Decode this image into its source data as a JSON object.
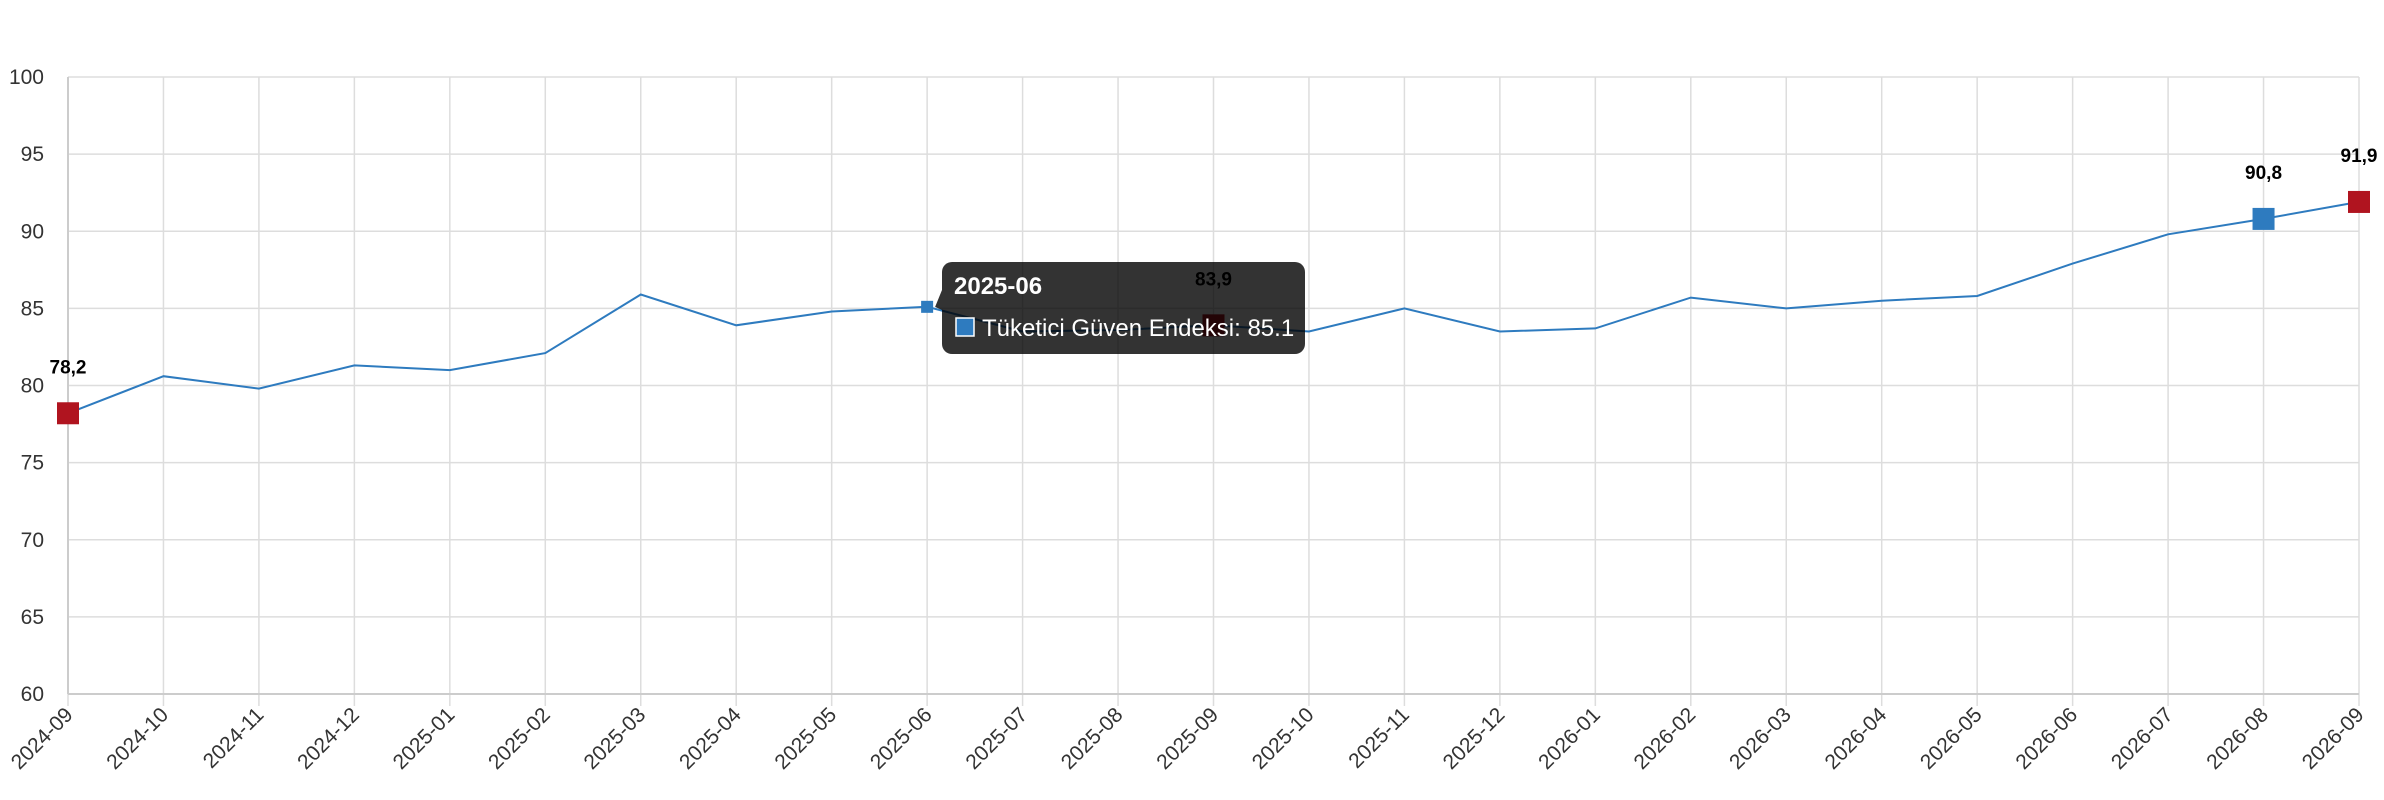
{
  "chart_data": {
    "type": "line",
    "title": "",
    "xlabel": "",
    "ylabel": "",
    "ylim": [
      60,
      100
    ],
    "y_ticks": [
      "60",
      "65",
      "70",
      "75",
      "80",
      "85",
      "90",
      "95",
      "100"
    ],
    "grid": true,
    "categories": [
      "2024-09",
      "2024-10",
      "2024-11",
      "2024-12",
      "2025-01",
      "2025-02",
      "2025-03",
      "2025-04",
      "2025-05",
      "2025-06",
      "2025-07",
      "2025-08",
      "2025-09",
      "2025-10",
      "2025-11",
      "2025-12",
      "2026-01",
      "2026-02",
      "2026-03",
      "2026-04",
      "2026-05",
      "2026-06",
      "2026-07",
      "2026-08",
      "2026-09"
    ],
    "series": [
      {
        "name": "Tüketici Güven Endeksi",
        "color": "#2e7bbf",
        "values": [
          78.2,
          80.6,
          79.8,
          81.3,
          81.0,
          82.1,
          85.9,
          83.9,
          84.8,
          85.1,
          83.5,
          83.6,
          83.9,
          83.5,
          85.0,
          83.5,
          83.7,
          85.7,
          85.0,
          85.5,
          85.8,
          87.9,
          89.8,
          90.8,
          91.9
        ]
      }
    ],
    "annotations": [
      {
        "category": "2024-09",
        "label": "78,2",
        "marker_color": "#b0141f"
      },
      {
        "category": "2025-09",
        "label": "83,9",
        "marker_color": "#b0141f"
      },
      {
        "category": "2026-08",
        "label": "90,8",
        "marker_color": "#2e7bbf"
      },
      {
        "category": "2026-09",
        "label": "91,9",
        "marker_color": "#b0141f"
      }
    ],
    "tooltip": {
      "category": "2025-06",
      "title": "2025-06",
      "text": "Tüketici Güven Endeksi: 85.1",
      "swatch_color": "#2e7bbf"
    }
  }
}
